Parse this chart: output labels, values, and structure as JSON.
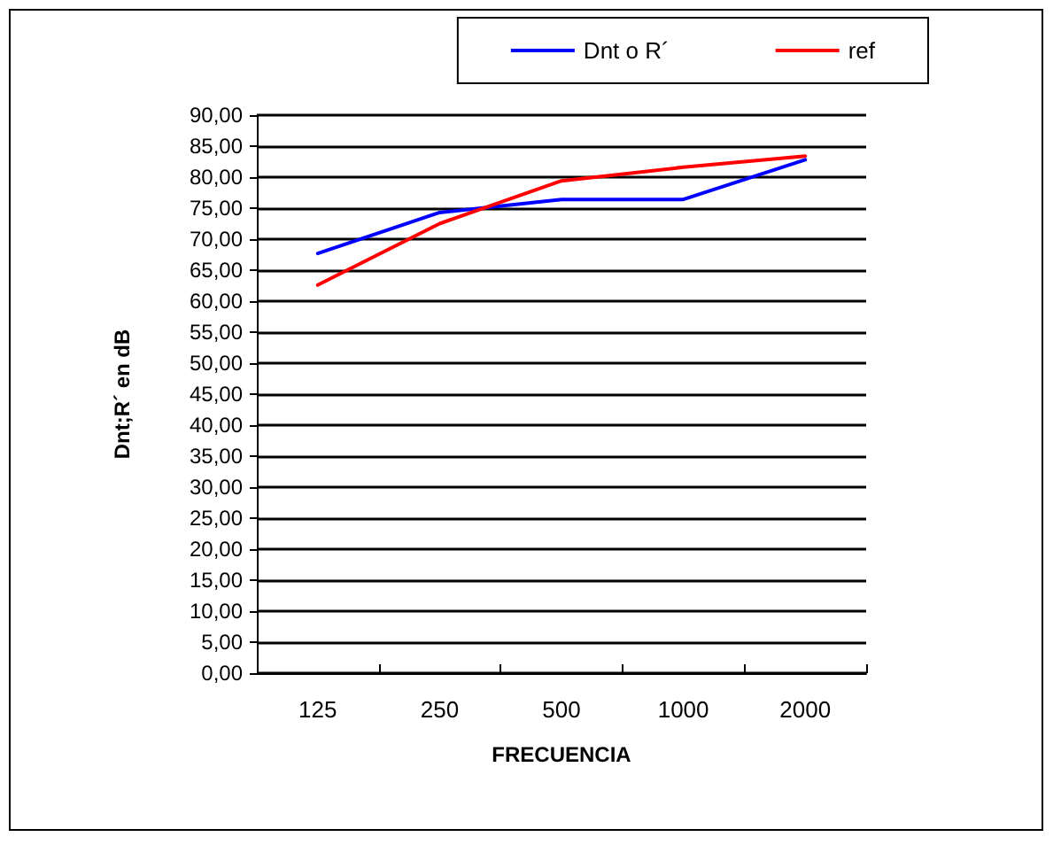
{
  "chart_data": {
    "type": "line",
    "xlabel": "FRECUENCIA",
    "ylabel": "Dnt;R´ en dB",
    "categories": [
      "125",
      "250",
      "500",
      "1000",
      "2000"
    ],
    "series": [
      {
        "name": "Dnt o R´",
        "color": "#0000ff",
        "values": [
          67.7,
          74.3,
          76.4,
          76.4,
          82.8
        ]
      },
      {
        "name": "ref",
        "color": "#ff0000",
        "values": [
          62.6,
          72.5,
          79.4,
          81.6,
          83.4
        ]
      }
    ],
    "ylim": [
      0,
      90
    ],
    "yticks": [
      {
        "value": 0,
        "label": "0,00"
      },
      {
        "value": 5,
        "label": "5,00"
      },
      {
        "value": 10,
        "label": "10,00"
      },
      {
        "value": 15,
        "label": "15,00"
      },
      {
        "value": 20,
        "label": "20,00"
      },
      {
        "value": 25,
        "label": "25,00"
      },
      {
        "value": 30,
        "label": "30,00"
      },
      {
        "value": 35,
        "label": "35,00"
      },
      {
        "value": 40,
        "label": "40,00"
      },
      {
        "value": 45,
        "label": "45,00"
      },
      {
        "value": 50,
        "label": "50,00"
      },
      {
        "value": 55,
        "label": "55,00"
      },
      {
        "value": 60,
        "label": "60,00"
      },
      {
        "value": 65,
        "label": "65,00"
      },
      {
        "value": 70,
        "label": "70,00"
      },
      {
        "value": 75,
        "label": "75,00"
      },
      {
        "value": 80,
        "label": "80,00"
      },
      {
        "value": 85,
        "label": "85,00"
      },
      {
        "value": 90,
        "label": "90,00"
      }
    ],
    "grid": "y",
    "legend": "top right",
    "marker": "none",
    "line_style": "solid"
  }
}
